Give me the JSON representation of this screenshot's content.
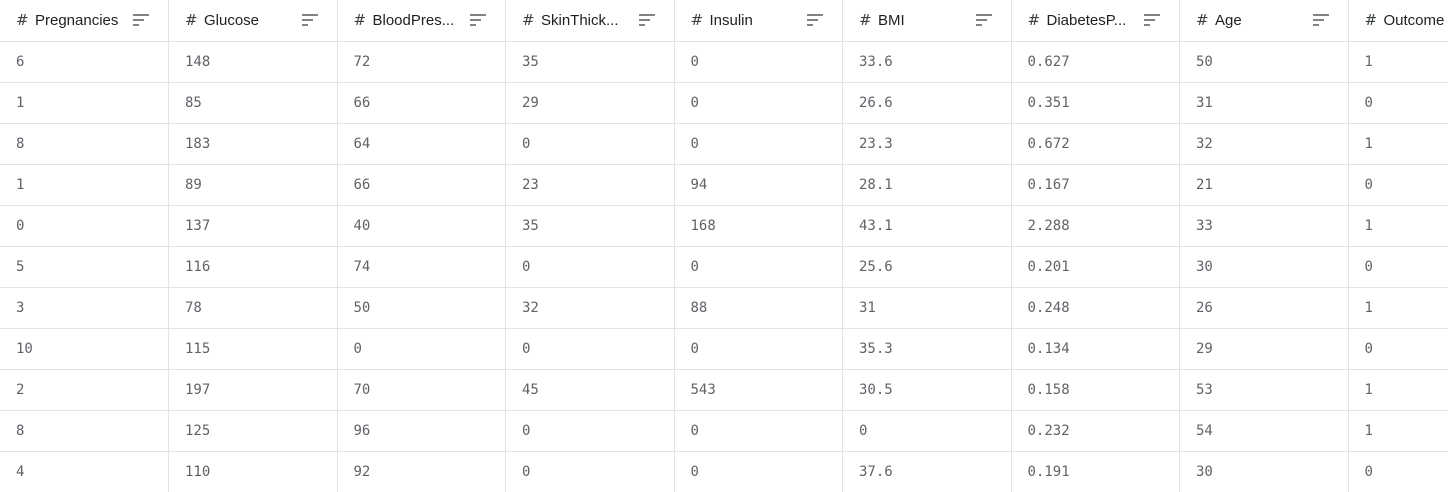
{
  "table": {
    "type_icon": "#",
    "columns": [
      {
        "label": "Pregnancies",
        "icon": "hash-icon"
      },
      {
        "label": "Glucose",
        "icon": "hash-icon"
      },
      {
        "label": "BloodPres...",
        "icon": "hash-icon"
      },
      {
        "label": "SkinThick...",
        "icon": "hash-icon"
      },
      {
        "label": "Insulin",
        "icon": "hash-icon"
      },
      {
        "label": "BMI",
        "icon": "hash-icon"
      },
      {
        "label": "DiabetesP...",
        "icon": "hash-icon"
      },
      {
        "label": "Age",
        "icon": "hash-icon"
      },
      {
        "label": "Outcome",
        "icon": "hash-icon"
      }
    ],
    "rows": [
      [
        "6",
        "148",
        "72",
        "35",
        "0",
        "33.6",
        "0.627",
        "50",
        "1"
      ],
      [
        "1",
        "85",
        "66",
        "29",
        "0",
        "26.6",
        "0.351",
        "31",
        "0"
      ],
      [
        "8",
        "183",
        "64",
        "0",
        "0",
        "23.3",
        "0.672",
        "32",
        "1"
      ],
      [
        "1",
        "89",
        "66",
        "23",
        "94",
        "28.1",
        "0.167",
        "21",
        "0"
      ],
      [
        "0",
        "137",
        "40",
        "35",
        "168",
        "43.1",
        "2.288",
        "33",
        "1"
      ],
      [
        "5",
        "116",
        "74",
        "0",
        "0",
        "25.6",
        "0.201",
        "30",
        "0"
      ],
      [
        "3",
        "78",
        "50",
        "32",
        "88",
        "31",
        "0.248",
        "26",
        "1"
      ],
      [
        "10",
        "115",
        "0",
        "0",
        "0",
        "35.3",
        "0.134",
        "29",
        "0"
      ],
      [
        "2",
        "197",
        "70",
        "45",
        "543",
        "30.5",
        "0.158",
        "53",
        "1"
      ],
      [
        "8",
        "125",
        "96",
        "0",
        "0",
        "0",
        "0.232",
        "54",
        "1"
      ],
      [
        "4",
        "110",
        "92",
        "0",
        "0",
        "37.6",
        "0.191",
        "30",
        "0"
      ]
    ]
  },
  "colors": {
    "text": "#202124",
    "cell_text": "#5f6368",
    "border": "#e3e3e3"
  }
}
